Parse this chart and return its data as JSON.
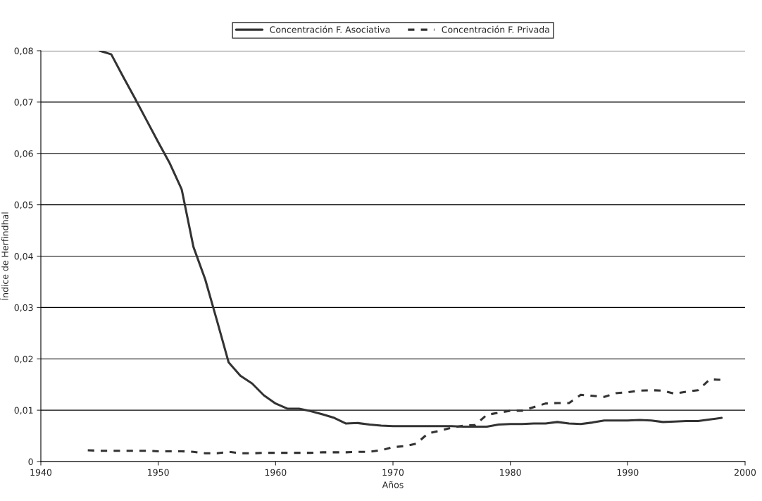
{
  "chart_data": {
    "type": "line",
    "xlabel": "Años",
    "ylabel": "Índice de Herfindhal",
    "xlim": [
      1940,
      2000
    ],
    "xticks": [
      1940,
      1950,
      1960,
      1970,
      1980,
      1990,
      2000
    ],
    "ylim": [
      0,
      0.08
    ],
    "yticks": [
      {
        "value": 0,
        "label": "0"
      },
      {
        "value": 0.01,
        "label": "0,01"
      },
      {
        "value": 0.02,
        "label": "0,02"
      },
      {
        "value": 0.03,
        "label": "0,03"
      },
      {
        "value": 0.04,
        "label": "0,04"
      },
      {
        "value": 0.05,
        "label": "0,05"
      },
      {
        "value": 0.06,
        "label": "0,06"
      },
      {
        "value": 0.07,
        "label": "0,07"
      },
      {
        "value": 0.08,
        "label": "0,08"
      }
    ],
    "grid": "y",
    "legend": "top",
    "marker": "none",
    "series": [
      {
        "name": "Concentración F. Asociativa",
        "color": "#333333",
        "line_style": "solid",
        "x": [
          1945,
          1946,
          1947,
          1948,
          1949,
          1950,
          1951,
          1952,
          1953,
          1954,
          1955,
          1956,
          1957,
          1958,
          1959,
          1960,
          1961,
          1962,
          1963,
          1964,
          1965,
          1966,
          1967,
          1968,
          1969,
          1970,
          1971,
          1972,
          1973,
          1974,
          1975,
          1976,
          1977,
          1978,
          1979,
          1980,
          1981,
          1982,
          1983,
          1984,
          1985,
          1986,
          1987,
          1988,
          1989,
          1990,
          1991,
          1992,
          1993,
          1994,
          1995,
          1996,
          1997,
          1998
        ],
        "values": [
          0.08,
          0.0793,
          0.075,
          0.0708,
          0.0665,
          0.0622,
          0.058,
          0.053,
          0.0418,
          0.0355,
          0.0275,
          0.0193,
          0.0167,
          0.0152,
          0.0129,
          0.0113,
          0.0103,
          0.0103,
          0.0098,
          0.0092,
          0.0085,
          0.0074,
          0.0075,
          0.0072,
          0.007,
          0.0069,
          0.0069,
          0.0069,
          0.0069,
          0.0069,
          0.0069,
          0.0068,
          0.0068,
          0.0068,
          0.0072,
          0.0073,
          0.0073,
          0.0074,
          0.0074,
          0.0077,
          0.0074,
          0.0073,
          0.0076,
          0.008,
          0.008,
          0.008,
          0.0081,
          0.008,
          0.0077,
          0.0078,
          0.0079,
          0.0079,
          0.0082,
          0.0085
        ]
      },
      {
        "name": "Concentración F. Privada",
        "color": "#333333",
        "line_style": "dashed",
        "x": [
          1944,
          1945,
          1946,
          1947,
          1948,
          1949,
          1950,
          1951,
          1952,
          1953,
          1954,
          1955,
          1956,
          1957,
          1958,
          1959,
          1960,
          1961,
          1962,
          1963,
          1964,
          1965,
          1966,
          1967,
          1968,
          1969,
          1970,
          1971,
          1972,
          1973,
          1974,
          1975,
          1976,
          1977,
          1978,
          1979,
          1980,
          1981,
          1982,
          1983,
          1984,
          1985,
          1986,
          1987,
          1988,
          1989,
          1990,
          1991,
          1992,
          1993,
          1994,
          1995,
          1996,
          1997,
          1998
        ],
        "values": [
          0.0022,
          0.0021,
          0.0021,
          0.0021,
          0.0021,
          0.0021,
          0.002,
          0.002,
          0.002,
          0.0019,
          0.0016,
          0.0016,
          0.0019,
          0.0016,
          0.0016,
          0.0017,
          0.0017,
          0.0017,
          0.0017,
          0.0017,
          0.0018,
          0.0018,
          0.0018,
          0.0019,
          0.0019,
          0.0022,
          0.0028,
          0.003,
          0.0035,
          0.0055,
          0.006,
          0.0066,
          0.007,
          0.0071,
          0.0091,
          0.0095,
          0.0099,
          0.0099,
          0.0106,
          0.0113,
          0.0114,
          0.0114,
          0.013,
          0.0128,
          0.0126,
          0.0133,
          0.0135,
          0.0138,
          0.0139,
          0.0138,
          0.0132,
          0.0136,
          0.0139,
          0.016,
          0.0159
        ]
      }
    ]
  }
}
